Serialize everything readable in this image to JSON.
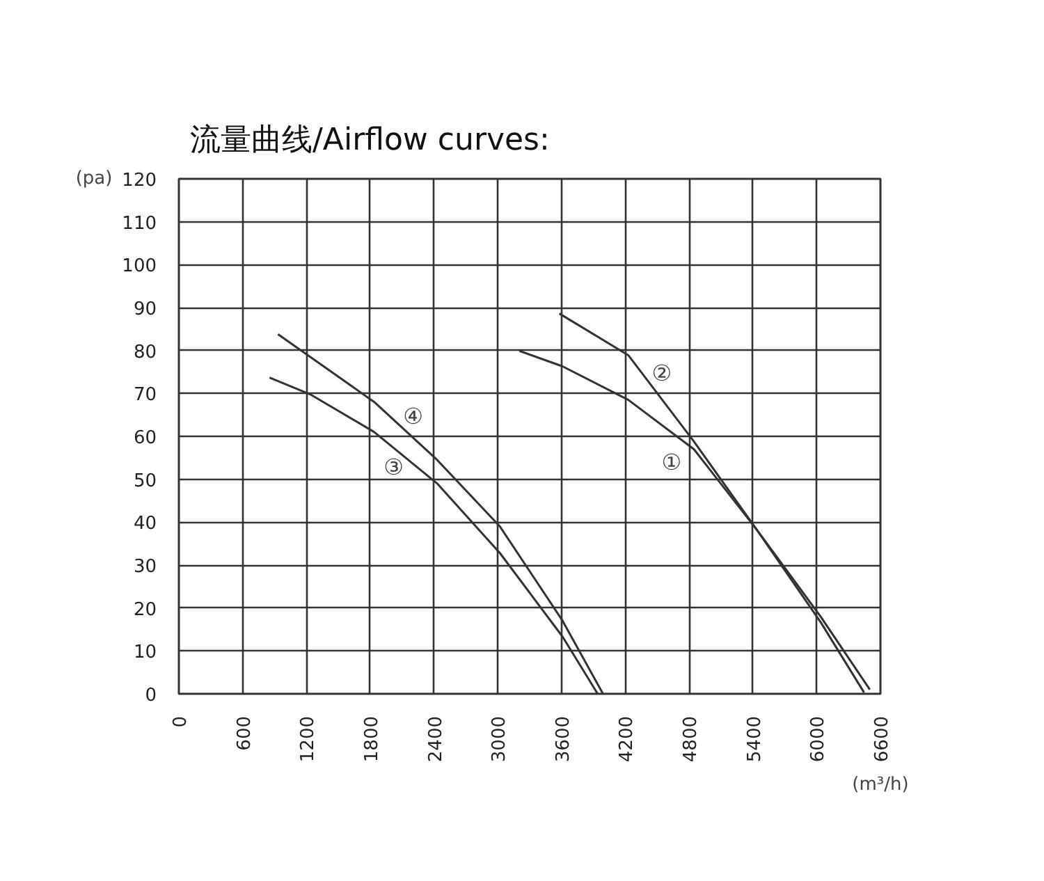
{
  "chart_data": {
    "type": "line",
    "title": "流量曲线/Airflow curves:",
    "xlabel": "(m³/h)",
    "ylabel": "(pa)",
    "series": [
      {
        "name": "①",
        "color": "#333333",
        "x": [
          3204,
          3610,
          4228,
          4845,
          5435,
          6040,
          6446
        ],
        "values": [
          79.9,
          76.3,
          68.5,
          57,
          38.3,
          16.6,
          0.3
        ]
      },
      {
        "name": "②",
        "color": "#333333",
        "x": [
          3580,
          4228,
          4845,
          5435,
          6040,
          6500
        ],
        "values": [
          88.6,
          78.9,
          58.8,
          38.3,
          17.9,
          1
        ]
      },
      {
        "name": "③",
        "color": "#333333",
        "x": [
          853,
          1234,
          1838,
          2430,
          3020,
          3610,
          3940
        ],
        "values": [
          73.7,
          69.8,
          61,
          49,
          32.8,
          13.3,
          0
        ]
      },
      {
        "name": "④",
        "color": "#333333",
        "x": [
          932,
          1838,
          2430,
          3020,
          3610,
          3990
        ],
        "values": [
          83.8,
          68,
          54.5,
          39,
          17,
          0
        ]
      }
    ],
    "xlim": [
      0,
      6600
    ],
    "xticks": [
      0,
      600,
      1200,
      1800,
      2400,
      3000,
      3600,
      4200,
      4800,
      5400,
      6000,
      6600
    ],
    "ylim": [
      0,
      120
    ],
    "yticks": [
      0,
      10,
      20,
      30,
      40,
      50,
      60,
      70,
      80,
      90,
      100,
      110,
      120
    ],
    "grid": true,
    "legend": false,
    "marker": "none",
    "line_style": "solid"
  }
}
